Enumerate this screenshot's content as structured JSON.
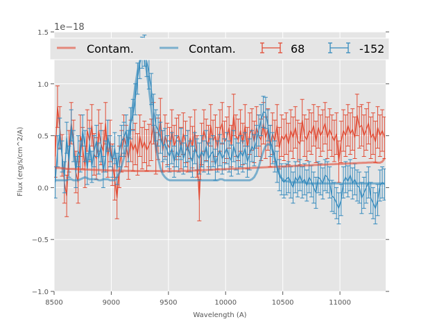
{
  "chart_data": {
    "type": "line",
    "title": "",
    "xlabel": "Wavelength (A)",
    "ylabel": "Flux (erg/s/cm^2/A)",
    "y_offset_text": "1e−18",
    "xlim": [
      8500,
      11400
    ],
    "ylim": [
      -1.0,
      1.5
    ],
    "x_ticks": [
      8500,
      9000,
      9500,
      10000,
      10500,
      11000
    ],
    "x_tick_labels": [
      "8500",
      "9000",
      "9500",
      "10000",
      "10500",
      "11000"
    ],
    "y_ticks": [
      -1.0,
      -0.5,
      0.0,
      0.5,
      1.0,
      1.5
    ],
    "y_tick_labels": [
      "−1.0",
      "−0.5",
      "0.0",
      "0.5",
      "1.0",
      "1.5"
    ],
    "grid": true,
    "legend_position": "top",
    "units_note": "flux values in units of 1e-18",
    "x": [
      8510,
      8530,
      8550,
      8570,
      8590,
      8610,
      8630,
      8650,
      8670,
      8690,
      8710,
      8730,
      8750,
      8770,
      8790,
      8810,
      8830,
      8850,
      8870,
      8890,
      8910,
      8930,
      8950,
      8970,
      8990,
      9010,
      9030,
      9050,
      9070,
      9090,
      9110,
      9130,
      9150,
      9170,
      9190,
      9210,
      9230,
      9250,
      9270,
      9290,
      9310,
      9330,
      9350,
      9370,
      9390,
      9410,
      9430,
      9450,
      9470,
      9490,
      9510,
      9530,
      9550,
      9570,
      9590,
      9610,
      9630,
      9650,
      9670,
      9690,
      9710,
      9730,
      9750,
      9770,
      9790,
      9810,
      9830,
      9850,
      9870,
      9890,
      9910,
      9930,
      9950,
      9970,
      9990,
      10010,
      10030,
      10050,
      10070,
      10090,
      10110,
      10130,
      10150,
      10170,
      10190,
      10210,
      10230,
      10250,
      10270,
      10290,
      10310,
      10330,
      10350,
      10370,
      10390,
      10410,
      10430,
      10450,
      10470,
      10490,
      10510,
      10530,
      10550,
      10570,
      10590,
      10610,
      10630,
      10650,
      10670,
      10690,
      10710,
      10730,
      10750,
      10770,
      10790,
      10810,
      10830,
      10850,
      10870,
      10890,
      10910,
      10930,
      10950,
      10970,
      10990,
      11010,
      11030,
      11050,
      11070,
      11090,
      11110,
      11130,
      11150,
      11170,
      11190,
      11210,
      11230,
      11250,
      11270,
      11290,
      11310,
      11330,
      11350,
      11370,
      11390
    ],
    "series": [
      {
        "name": "Contam.",
        "kind": "line",
        "color": "#e24a33",
        "alpha": 0.6,
        "values": [
          0.19,
          0.19,
          0.19,
          0.185,
          0.185,
          0.18,
          0.18,
          0.18,
          0.18,
          0.178,
          0.177,
          0.176,
          0.175,
          0.175,
          0.174,
          0.173,
          0.172,
          0.171,
          0.17,
          0.17,
          0.169,
          0.168,
          0.167,
          0.166,
          0.165,
          0.165,
          0.165,
          0.164,
          0.164,
          0.163,
          0.163,
          0.162,
          0.162,
          0.161,
          0.161,
          0.16,
          0.16,
          0.16,
          0.16,
          0.16,
          0.16,
          0.16,
          0.16,
          0.16,
          0.16,
          0.16,
          0.16,
          0.16,
          0.16,
          0.16,
          0.16,
          0.16,
          0.16,
          0.16,
          0.16,
          0.161,
          0.161,
          0.162,
          0.162,
          0.163,
          0.164,
          0.165,
          0.166,
          0.167,
          0.168,
          0.169,
          0.17,
          0.171,
          0.172,
          0.173,
          0.174,
          0.175,
          0.176,
          0.177,
          0.178,
          0.179,
          0.18,
          0.181,
          0.182,
          0.183,
          0.184,
          0.185,
          0.186,
          0.187,
          0.188,
          0.189,
          0.19,
          0.191,
          0.192,
          0.193,
          0.194,
          0.195,
          0.196,
          0.197,
          0.198,
          0.199,
          0.2,
          0.201,
          0.202,
          0.203,
          0.204,
          0.205,
          0.206,
          0.207,
          0.208,
          0.209,
          0.21,
          0.211,
          0.212,
          0.213,
          0.214,
          0.215,
          0.216,
          0.217,
          0.218,
          0.219,
          0.22,
          0.221,
          0.222,
          0.223,
          0.224,
          0.225,
          0.226,
          0.227,
          0.228,
          0.229,
          0.23,
          0.231,
          0.232,
          0.233,
          0.234,
          0.235,
          0.236,
          0.237,
          0.238,
          0.239,
          0.24,
          0.241,
          0.242,
          0.243,
          0.244,
          0.24,
          0.24,
          0.25,
          0.28
        ]
      },
      {
        "name": "Contam.",
        "kind": "line",
        "color": "#348abd",
        "alpha": 0.6,
        "values": [
          0.07,
          0.07,
          0.07,
          0.07,
          0.07,
          0.07,
          0.08,
          0.08,
          0.07,
          0.07,
          0.07,
          0.08,
          0.09,
          0.1,
          0.09,
          0.08,
          0.08,
          0.08,
          0.08,
          0.07,
          0.07,
          0.08,
          0.08,
          0.08,
          0.07,
          0.07,
          0.07,
          0.1,
          0.14,
          0.2,
          0.28,
          0.38,
          0.5,
          0.64,
          0.8,
          0.98,
          1.12,
          1.22,
          1.27,
          1.24,
          1.12,
          0.95,
          0.76,
          0.57,
          0.4,
          0.28,
          0.19,
          0.13,
          0.1,
          0.08,
          0.07,
          0.07,
          0.07,
          0.07,
          0.07,
          0.07,
          0.07,
          0.07,
          0.07,
          0.07,
          0.07,
          0.07,
          0.07,
          0.07,
          0.07,
          0.07,
          0.07,
          0.07,
          0.07,
          0.07,
          0.07,
          0.07,
          0.08,
          0.08,
          0.07,
          0.07,
          0.07,
          0.07,
          0.07,
          0.07,
          0.07,
          0.07,
          0.07,
          0.07,
          0.07,
          0.07,
          0.08,
          0.1,
          0.14,
          0.2,
          0.28,
          0.35,
          0.4,
          0.42,
          0.41,
          0.36,
          0.28,
          0.2,
          0.13,
          0.09,
          0.07,
          0.06,
          0.06,
          0.05,
          0.05,
          0.05,
          0.05,
          0.05,
          0.05,
          0.05,
          0.04,
          0.04,
          0.04,
          0.04,
          0.04,
          0.04,
          0.04,
          0.04,
          0.04,
          0.04,
          0.04,
          0.04,
          0.04,
          0.04,
          0.04,
          0.04,
          0.04,
          0.04,
          0.04,
          0.04,
          0.04,
          0.04,
          0.04,
          0.04,
          0.04,
          0.04,
          0.04,
          0.04,
          0.04,
          0.04,
          0.04,
          0.04,
          0.04,
          0.04,
          0.04
        ]
      },
      {
        "name": "68",
        "kind": "errorbar",
        "color": "#e24a33",
        "values": [
          0.3,
          0.78,
          0.58,
          0.31,
          0.05,
          -0.08,
          0.35,
          0.62,
          0.45,
          0.15,
          0.05,
          0.5,
          0.38,
          0.2,
          0.55,
          0.45,
          0.6,
          0.32,
          0.28,
          0.55,
          0.42,
          0.35,
          0.62,
          0.3,
          0.45,
          0.22,
          0.08,
          -0.1,
          0.2,
          0.35,
          0.5,
          0.4,
          0.28,
          0.45,
          0.36,
          0.42,
          0.32,
          0.5,
          0.38,
          0.44,
          0.36,
          0.41,
          0.46,
          0.62,
          0.33,
          0.47,
          0.66,
          0.35,
          0.5,
          0.42,
          0.38,
          0.55,
          0.4,
          0.47,
          0.5,
          0.38,
          0.52,
          0.44,
          0.35,
          0.48,
          0.39,
          0.55,
          0.3,
          -0.12,
          0.42,
          0.55,
          0.46,
          0.4,
          0.6,
          0.45,
          0.5,
          0.38,
          0.55,
          0.62,
          0.44,
          0.48,
          0.58,
          0.4,
          0.7,
          0.5,
          0.46,
          0.55,
          0.42,
          0.6,
          0.38,
          0.52,
          0.56,
          0.44,
          0.58,
          0.5,
          0.46,
          0.62,
          0.48,
          0.56,
          0.4,
          0.52,
          0.45,
          0.6,
          0.38,
          0.5,
          0.46,
          0.52,
          0.42,
          0.55,
          0.48,
          0.58,
          0.45,
          0.42,
          0.65,
          0.5,
          0.46,
          0.55,
          0.52,
          0.6,
          0.44,
          0.58,
          0.5,
          0.55,
          0.62,
          0.48,
          0.56,
          0.5,
          0.45,
          0.52,
          0.25,
          0.44,
          0.55,
          0.5,
          0.6,
          0.52,
          0.56,
          0.48,
          0.7,
          0.58,
          0.6,
          0.5,
          0.56,
          0.62,
          0.48,
          0.52,
          0.44,
          0.58,
          0.5,
          0.55,
          0.48
        ],
        "errors": [
          0.2,
          0.2,
          0.2,
          0.2,
          0.2,
          0.2,
          0.2,
          0.2,
          0.2,
          0.2,
          0.2,
          0.2,
          0.2,
          0.2,
          0.2,
          0.2,
          0.2,
          0.2,
          0.2,
          0.2,
          0.2,
          0.2,
          0.2,
          0.2,
          0.2,
          0.2,
          0.2,
          0.2,
          0.2,
          0.2,
          0.2,
          0.2,
          0.2,
          0.2,
          0.2,
          0.2,
          0.2,
          0.2,
          0.2,
          0.2,
          0.2,
          0.2,
          0.2,
          0.2,
          0.2,
          0.2,
          0.2,
          0.2,
          0.2,
          0.2,
          0.2,
          0.2,
          0.2,
          0.2,
          0.2,
          0.2,
          0.2,
          0.2,
          0.2,
          0.2,
          0.2,
          0.2,
          0.2,
          0.2,
          0.2,
          0.2,
          0.2,
          0.2,
          0.2,
          0.2,
          0.2,
          0.2,
          0.2,
          0.2,
          0.2,
          0.2,
          0.2,
          0.2,
          0.2,
          0.2,
          0.2,
          0.2,
          0.2,
          0.2,
          0.2,
          0.2,
          0.2,
          0.2,
          0.2,
          0.2,
          0.2,
          0.2,
          0.2,
          0.2,
          0.2,
          0.2,
          0.2,
          0.2,
          0.2,
          0.2,
          0.2,
          0.2,
          0.2,
          0.2,
          0.2,
          0.2,
          0.2,
          0.2,
          0.2,
          0.2,
          0.2,
          0.2,
          0.2,
          0.2,
          0.2,
          0.2,
          0.2,
          0.2,
          0.2,
          0.2,
          0.2,
          0.2,
          0.2,
          0.2,
          0.2,
          0.2,
          0.2,
          0.2,
          0.2,
          0.2,
          0.2,
          0.2,
          0.2,
          0.2,
          0.2,
          0.2,
          0.2,
          0.2,
          0.2,
          0.2,
          0.2,
          0.2,
          0.2,
          0.2,
          0.2
        ]
      },
      {
        "name": "-152",
        "kind": "errorbar",
        "color": "#348abd",
        "values": [
          0.05,
          0.35,
          0.52,
          0.3,
          0.1,
          0.48,
          0.25,
          0.6,
          0.4,
          0.15,
          0.35,
          0.3,
          0.55,
          0.4,
          0.18,
          0.42,
          0.2,
          0.35,
          0.45,
          0.28,
          0.4,
          0.15,
          0.3,
          0.5,
          0.35,
          0.25,
          0.38,
          0.18,
          0.35,
          0.45,
          0.48,
          0.55,
          0.4,
          0.62,
          0.7,
          0.85,
          1.05,
          1.2,
          1.3,
          1.32,
          1.22,
          1.1,
          0.95,
          0.75,
          0.6,
          0.55,
          0.48,
          0.4,
          0.42,
          0.35,
          0.3,
          0.38,
          0.25,
          0.35,
          0.3,
          0.42,
          0.28,
          0.35,
          0.4,
          0.3,
          0.25,
          0.38,
          0.32,
          0.28,
          0.35,
          0.3,
          0.4,
          0.28,
          0.32,
          0.35,
          0.22,
          0.3,
          0.36,
          0.28,
          0.32,
          0.38,
          0.3,
          0.26,
          0.4,
          0.32,
          0.28,
          0.35,
          0.3,
          0.38,
          0.25,
          0.32,
          0.4,
          0.36,
          0.45,
          0.55,
          0.65,
          0.73,
          0.72,
          0.6,
          0.45,
          0.38,
          0.3,
          0.2,
          0.12,
          0.08,
          0.05,
          0.08,
          0.1,
          0.05,
          0.0,
          0.1,
          0.06,
          0.12,
          0.05,
          0.08,
          0.02,
          0.1,
          0.06,
          0.0,
          -0.05,
          0.1,
          0.08,
          0.04,
          0.12,
          0.1,
          0.05,
          -0.08,
          -0.1,
          -0.15,
          -0.2,
          -0.12,
          0.05,
          0.1,
          0.06,
          0.12,
          0.04,
          0.08,
          0.02,
          0.0,
          -0.1,
          -0.05,
          0.0,
          0.05,
          -0.1,
          -0.15,
          -0.2,
          -0.12,
          0.02,
          0.05,
          0.03
        ],
        "errors": [
          0.15,
          0.15,
          0.15,
          0.15,
          0.15,
          0.15,
          0.15,
          0.15,
          0.15,
          0.15,
          0.15,
          0.15,
          0.15,
          0.15,
          0.15,
          0.15,
          0.15,
          0.15,
          0.15,
          0.15,
          0.15,
          0.15,
          0.15,
          0.15,
          0.15,
          0.15,
          0.15,
          0.15,
          0.15,
          0.15,
          0.15,
          0.15,
          0.15,
          0.15,
          0.15,
          0.15,
          0.15,
          0.15,
          0.15,
          0.15,
          0.15,
          0.15,
          0.15,
          0.15,
          0.15,
          0.15,
          0.15,
          0.15,
          0.15,
          0.15,
          0.15,
          0.15,
          0.15,
          0.15,
          0.15,
          0.15,
          0.15,
          0.15,
          0.15,
          0.15,
          0.15,
          0.15,
          0.15,
          0.15,
          0.15,
          0.15,
          0.15,
          0.15,
          0.15,
          0.15,
          0.15,
          0.15,
          0.15,
          0.15,
          0.15,
          0.15,
          0.15,
          0.15,
          0.15,
          0.15,
          0.15,
          0.15,
          0.15,
          0.15,
          0.15,
          0.15,
          0.15,
          0.15,
          0.15,
          0.15,
          0.15,
          0.15,
          0.15,
          0.15,
          0.15,
          0.15,
          0.15,
          0.15,
          0.15,
          0.15,
          0.15,
          0.15,
          0.15,
          0.15,
          0.15,
          0.15,
          0.15,
          0.15,
          0.15,
          0.15,
          0.15,
          0.15,
          0.15,
          0.15,
          0.15,
          0.15,
          0.15,
          0.15,
          0.15,
          0.15,
          0.15,
          0.15,
          0.15,
          0.15,
          0.15,
          0.15,
          0.15,
          0.15,
          0.15,
          0.15,
          0.15,
          0.15,
          0.15,
          0.15,
          0.15,
          0.15,
          0.15,
          0.15,
          0.15,
          0.15,
          0.15,
          0.15,
          0.15,
          0.15,
          0.15
        ]
      }
    ],
    "legend": [
      {
        "label": "Contam.",
        "kind": "line",
        "color": "#e24a33"
      },
      {
        "label": "Contam.",
        "kind": "line",
        "color": "#348abd"
      },
      {
        "label": "68",
        "kind": "errorbar",
        "color": "#e24a33"
      },
      {
        "label": "-152",
        "kind": "errorbar",
        "color": "#348abd"
      }
    ]
  },
  "style": {
    "axes_bg": "#e5e5e5",
    "grid_color": "#ffffff",
    "tick_color": "#555555"
  }
}
